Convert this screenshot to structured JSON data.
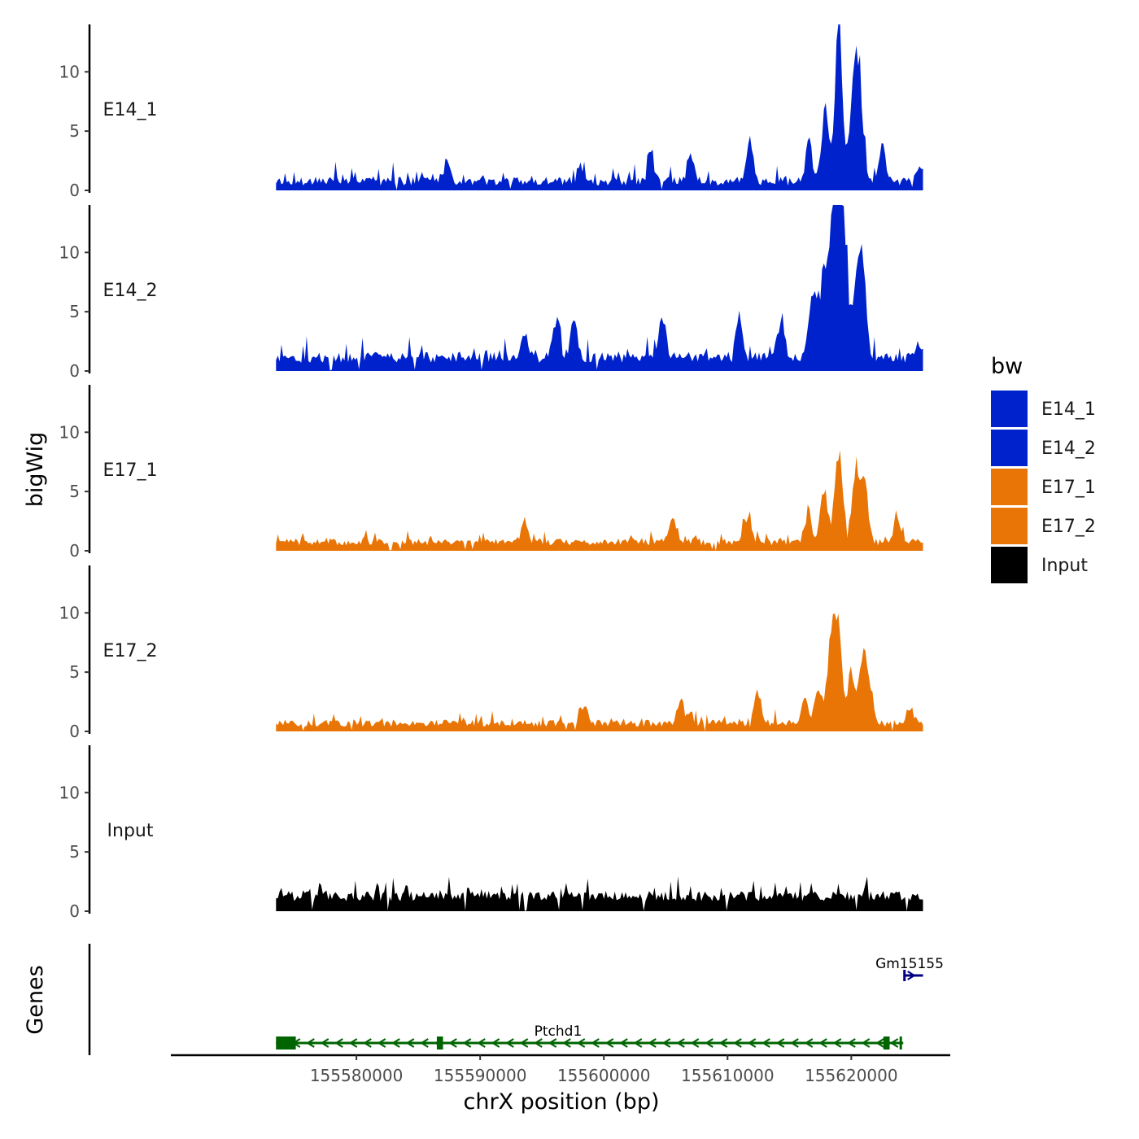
{
  "chart_data": {
    "type": "area",
    "xlabel": "chrX position (bp)",
    "ylabel": "bigWig",
    "genes_label": "Genes",
    "xlim": [
      155565000,
      155628000
    ],
    "ylim": [
      0,
      14
    ],
    "yticks": [
      0,
      5,
      10
    ],
    "xticks": [
      155580000,
      155590000,
      155600000,
      155610000,
      155620000
    ],
    "data_range": [
      155573500,
      155625800
    ],
    "legend": {
      "title": "bw",
      "entries": [
        {
          "label": "E14_1",
          "color": "#0022cc"
        },
        {
          "label": "E14_2",
          "color": "#0022cc"
        },
        {
          "label": "E17_1",
          "color": "#e87506"
        },
        {
          "label": "E17_2",
          "color": "#e87506"
        },
        {
          "label": "Input",
          "color": "#000000"
        }
      ]
    },
    "series": [
      {
        "name": "E14_1",
        "color": "#0022cc",
        "baseline": 0.4,
        "noise": 0.75,
        "seed": 11,
        "peaks": [
          [
            155619000,
            12.4
          ],
          [
            155620600,
            9.6
          ],
          [
            155617900,
            6.0
          ],
          [
            155620100,
            5.4
          ],
          [
            155616600,
            3.6
          ],
          [
            155622500,
            3.1
          ],
          [
            155611800,
            3.3
          ],
          [
            155603800,
            2.8
          ],
          [
            155587300,
            2.0
          ],
          [
            155598000,
            1.4
          ],
          [
            155607000,
            2.1
          ],
          [
            155625500,
            1.3
          ]
        ]
      },
      {
        "name": "E14_2",
        "color": "#0022cc",
        "baseline": 0.7,
        "noise": 0.9,
        "seed": 23,
        "peaks": [
          [
            155618900,
            13.7
          ],
          [
            155618400,
            10.3
          ],
          [
            155619500,
            9.1
          ],
          [
            155620500,
            7.4
          ],
          [
            155617600,
            6.6
          ],
          [
            155621000,
            5.6
          ],
          [
            155616800,
            4.3
          ],
          [
            155610900,
            3.7
          ],
          [
            155604700,
            3.5
          ],
          [
            155596100,
            3.4
          ],
          [
            155597600,
            3.0
          ],
          [
            155593600,
            2.1
          ],
          [
            155614300,
            3.3
          ],
          [
            155625400,
            1.4
          ]
        ]
      },
      {
        "name": "E17_1",
        "color": "#e87506",
        "baseline": 0.45,
        "noise": 0.6,
        "seed": 37,
        "peaks": [
          [
            155619000,
            7.8
          ],
          [
            155620400,
            6.1
          ],
          [
            155621100,
            5.0
          ],
          [
            155617800,
            4.6
          ],
          [
            155616500,
            2.5
          ],
          [
            155611600,
            2.1
          ],
          [
            155605500,
            2.0
          ],
          [
            155593600,
            1.5
          ],
          [
            155623700,
            1.7
          ]
        ]
      },
      {
        "name": "E17_2",
        "color": "#e87506",
        "baseline": 0.4,
        "noise": 0.6,
        "seed": 53,
        "peaks": [
          [
            155618900,
            8.6
          ],
          [
            155618300,
            5.9
          ],
          [
            155620900,
            5.6
          ],
          [
            155620000,
            4.4
          ],
          [
            155617300,
            3.0
          ],
          [
            155616200,
            2.0
          ],
          [
            155621400,
            2.7
          ],
          [
            155612400,
            2.1
          ],
          [
            155606200,
            1.9
          ],
          [
            155598400,
            1.4
          ],
          [
            155624700,
            1.2
          ]
        ]
      },
      {
        "name": "Input",
        "color": "#000000",
        "baseline": 0.85,
        "noise": 0.85,
        "seed": 71,
        "peaks": []
      }
    ],
    "genes": [
      {
        "name": "Ptchd1",
        "color": "#006400",
        "strand": "-",
        "start": 155573500,
        "end": 155624200,
        "exons": [
          [
            155573500,
            155575100
          ],
          [
            155586500,
            155587000
          ],
          [
            155622600,
            155623100
          ]
        ]
      },
      {
        "name": "Gm15155",
        "color": "#000080",
        "strand": "+",
        "start": 155624300,
        "end": 155625800,
        "exons": []
      }
    ]
  }
}
